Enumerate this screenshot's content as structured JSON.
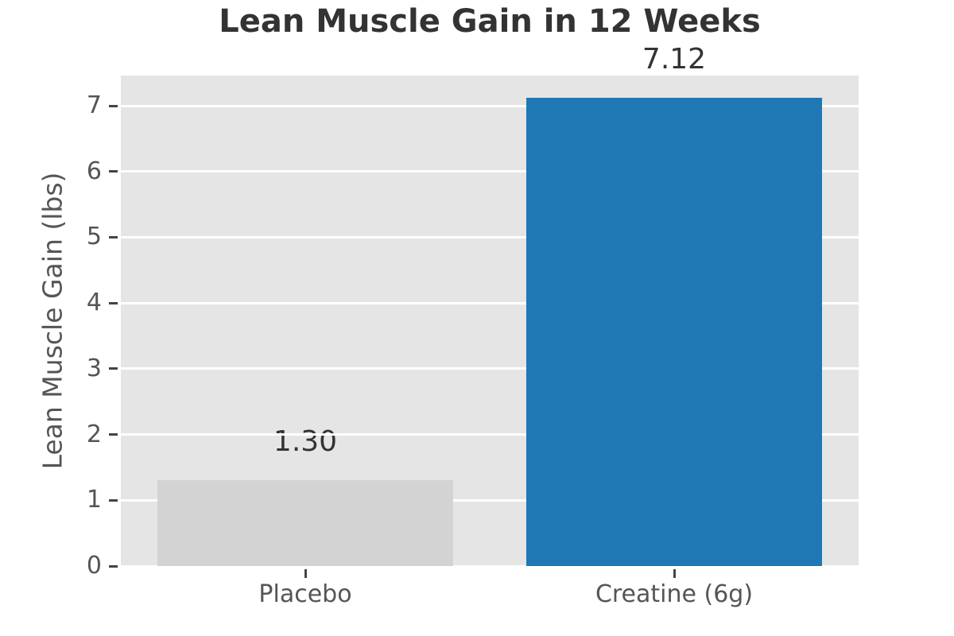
{
  "chart_data": {
    "type": "bar",
    "title": "Lean Muscle Gain in 12 Weeks",
    "xlabel": "",
    "ylabel": "Lean Muscle Gain (lbs)",
    "categories": [
      "Placebo",
      "Creatine (6g)"
    ],
    "values": [
      1.3,
      7.12
    ],
    "value_labels": [
      "1.30",
      "7.12"
    ],
    "bar_colors": [
      "#d3d3d3",
      "#1f77b4"
    ],
    "yticks": [
      0,
      1,
      2,
      3,
      4,
      5,
      6,
      7
    ],
    "ylim": [
      0,
      7.46
    ],
    "bar_width_fraction": 0.8,
    "grid": true,
    "legend": false,
    "style": {
      "figure_bg": "#ffffff",
      "plot_bg": "#e5e5e5",
      "grid_color": "#ffffff",
      "tick_color": "#444444",
      "tick_label_color": "#555555",
      "axis_label_color": "#555555",
      "title_color": "#333333",
      "value_label_color": "#333333"
    }
  }
}
